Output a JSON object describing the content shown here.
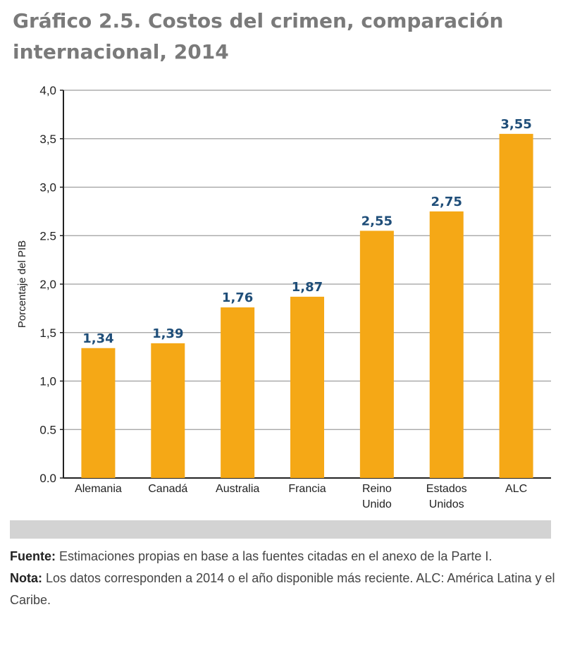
{
  "title": "Gráfico 2.5. Costos del crimen, comparación internacional, 2014",
  "colors": {
    "bar": "#F5A816",
    "value_label": "#1F4E79",
    "grid": "#9e9e9e",
    "title": "#7A7A7A",
    "band": "#D3D3D3"
  },
  "chart_data": {
    "type": "bar",
    "categories": [
      "Alemania",
      "Canadá",
      "Australia",
      "Francia",
      "Reino Unido",
      "Estados Unidos",
      "ALC"
    ],
    "category_lines": [
      [
        "Alemania"
      ],
      [
        "Canadá"
      ],
      [
        "Australia"
      ],
      [
        "Francia"
      ],
      [
        "Reino",
        "Unido"
      ],
      [
        "Estados",
        "Unidos"
      ],
      [
        "ALC"
      ]
    ],
    "values": [
      1.34,
      1.39,
      1.76,
      1.87,
      2.55,
      2.75,
      3.55
    ],
    "value_labels": [
      "1,34",
      "1,39",
      "1,76",
      "1,87",
      "2,55",
      "2,75",
      "3,55"
    ],
    "ylabel": "Porcentaje del PIB",
    "ylim": [
      0,
      4.0
    ],
    "yticks": [
      0,
      0.5,
      1.0,
      1.5,
      2.0,
      2.5,
      3.0,
      3.5,
      4.0
    ],
    "ytick_labels": [
      "0.0",
      "0.5",
      "1,0",
      "1,5",
      "2,0",
      "2.5",
      "3,0",
      "3,5",
      "4,0"
    ],
    "grid": true,
    "legend": "none"
  },
  "notes": {
    "source_label": "Fuente:",
    "source_text": " Estimaciones propias en base a las fuentes citadas en el anexo de la Parte I.",
    "note_label": "Nota:",
    "note_text": " Los datos corresponden a 2014 o el año disponible más reciente. ALC: América Latina y el Caribe."
  }
}
